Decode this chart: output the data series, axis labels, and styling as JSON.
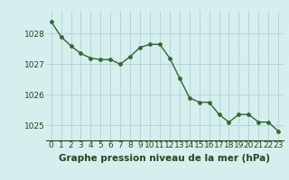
{
  "x": [
    0,
    1,
    2,
    3,
    4,
    5,
    6,
    7,
    8,
    9,
    10,
    11,
    12,
    13,
    14,
    15,
    16,
    17,
    18,
    19,
    20,
    21,
    22,
    23
  ],
  "y": [
    1028.4,
    1027.9,
    1027.6,
    1027.35,
    1027.2,
    1027.15,
    1027.15,
    1027.0,
    1027.25,
    1027.55,
    1027.65,
    1027.65,
    1027.2,
    1026.55,
    1025.9,
    1025.75,
    1025.75,
    1025.35,
    1025.1,
    1025.35,
    1025.35,
    1025.1,
    1025.1,
    1024.8
  ],
  "line_color": "#2d6a2d",
  "marker_color": "#2d6a2d",
  "bg_color": "#d6eeee",
  "grid_color": "#aad4d4",
  "xlabel": "Graphe pression niveau de la mer (hPa)",
  "xlabel_color": "#1a4a1a",
  "tick_color": "#1a4a1a",
  "ylim": [
    1024.5,
    1028.75
  ],
  "yticks": [
    1025,
    1026,
    1027,
    1028
  ],
  "xlim": [
    -0.5,
    23.5
  ],
  "marker_size": 2.8,
  "line_width": 1.0,
  "xlabel_fontsize": 7.5,
  "tick_fontsize": 6.5
}
